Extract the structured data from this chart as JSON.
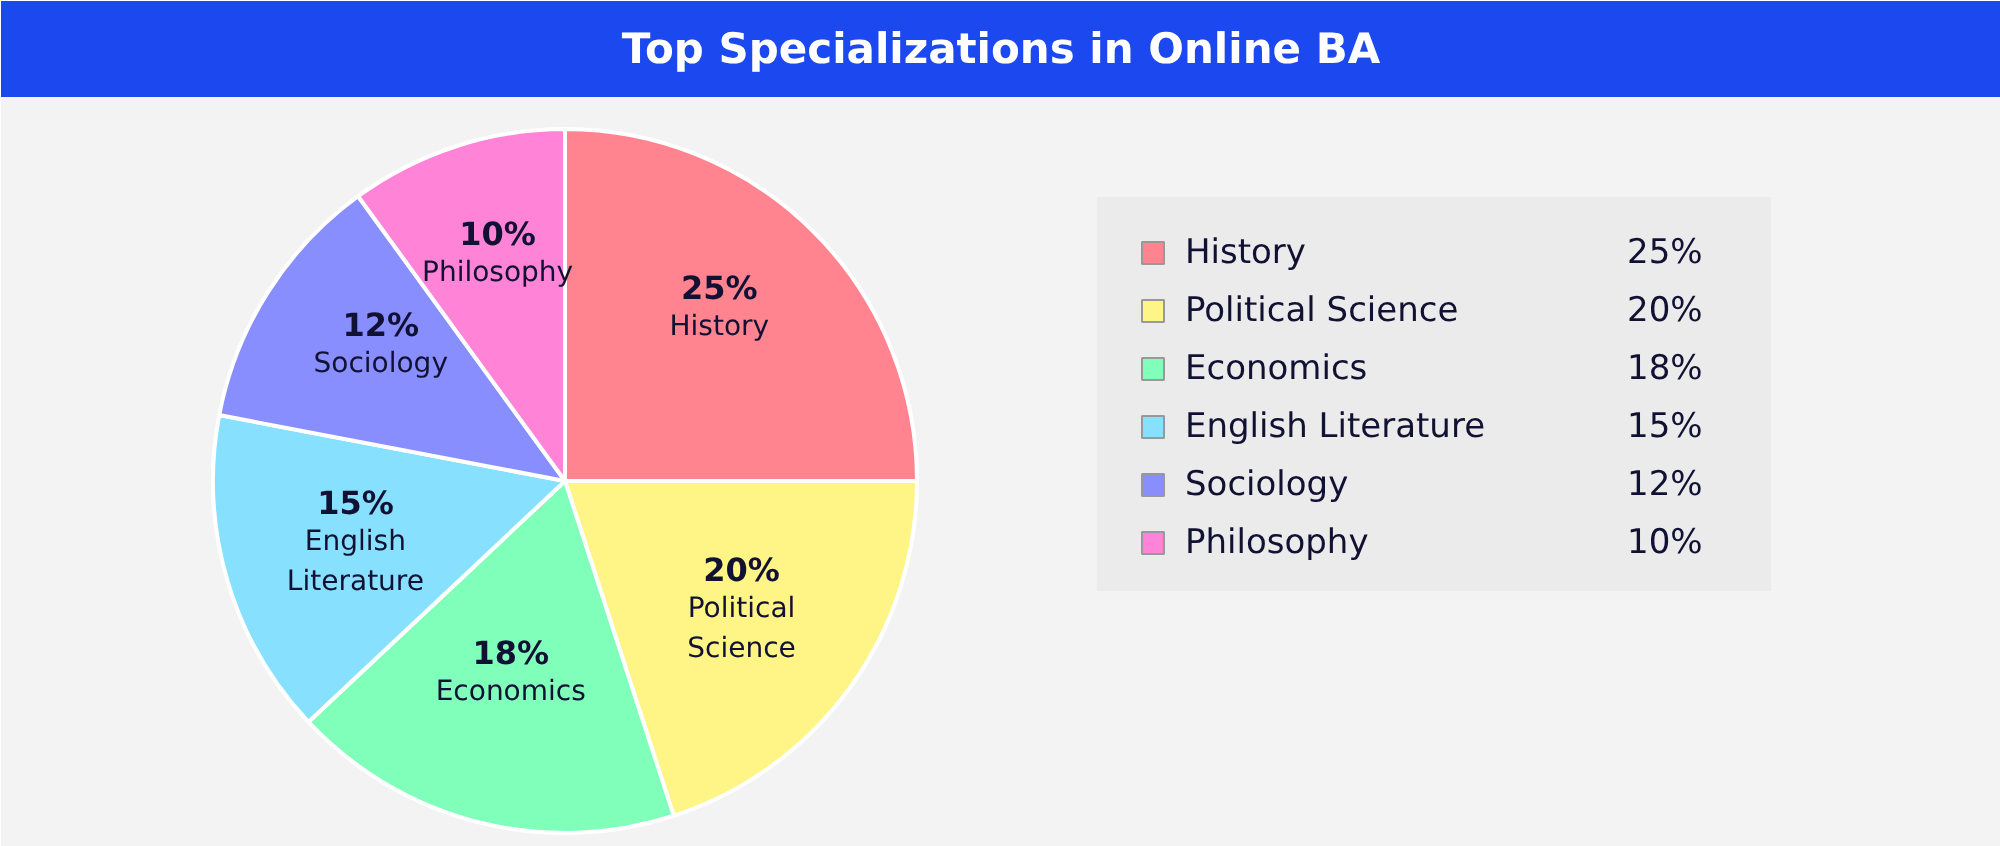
{
  "chart_data": {
    "type": "pie",
    "title": "Top Specializations in Online BA",
    "categories": [
      "History",
      "Political Science",
      "Economics",
      "English Literature",
      "Sociology",
      "Philosophy"
    ],
    "values": [
      25,
      20,
      18,
      15,
      12,
      10
    ],
    "value_labels": [
      "25%",
      "20%",
      "18%",
      "15%",
      "12%",
      "10%"
    ],
    "colors": [
      "#ff848f",
      "#fff587",
      "#80ffbb",
      "#88e0ff",
      "#898eff",
      "#ff84d8"
    ],
    "legend": "right"
  }
}
